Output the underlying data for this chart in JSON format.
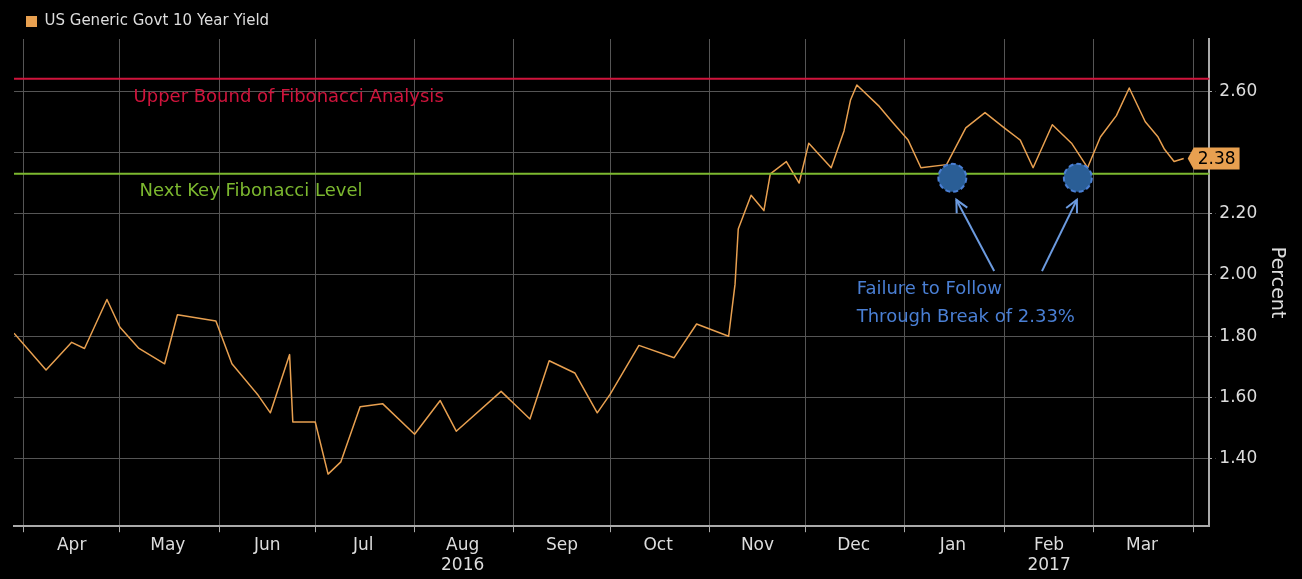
{
  "chart_data": {
    "type": "line",
    "ylabel": "Percent",
    "x": [
      "2016-03-29",
      "2016-04-08",
      "2016-04-16",
      "2016-04-20",
      "2016-04-27",
      "2016-05-01",
      "2016-05-07",
      "2016-05-15",
      "2016-05-19",
      "2016-05-31",
      "2016-06-05",
      "2016-06-13",
      "2016-06-17",
      "2016-06-23",
      "2016-06-24",
      "2016-07-01",
      "2016-07-05",
      "2016-07-09",
      "2016-07-15",
      "2016-07-22",
      "2016-08-01",
      "2016-08-09",
      "2016-08-14",
      "2016-08-28",
      "2016-09-06",
      "2016-09-12",
      "2016-09-20",
      "2016-09-27",
      "2016-10-01",
      "2016-10-10",
      "2016-10-21",
      "2016-10-28",
      "2016-11-07",
      "2016-11-09",
      "2016-11-10",
      "2016-11-14",
      "2016-11-18",
      "2016-11-20",
      "2016-11-25",
      "2016-11-29",
      "2016-12-02",
      "2016-12-09",
      "2016-12-13",
      "2016-12-15",
      "2016-12-17",
      "2016-12-24",
      "2016-12-28",
      "2017-01-02",
      "2017-01-06",
      "2017-01-14",
      "2017-01-20",
      "2017-01-26",
      "2017-02-01",
      "2017-02-06",
      "2017-02-10",
      "2017-02-16",
      "2017-02-22",
      "2017-02-27",
      "2017-03-03",
      "2017-03-08",
      "2017-03-12",
      "2017-03-17",
      "2017-03-21",
      "2017-03-23",
      "2017-03-26",
      "2017-03-29"
    ],
    "series": [
      {
        "name": "US Generic Govt 10 Year Yield",
        "color": "#e8a050",
        "values": [
          1.81,
          1.69,
          1.78,
          1.76,
          1.92,
          1.83,
          1.76,
          1.71,
          1.87,
          1.85,
          1.71,
          1.61,
          1.55,
          1.74,
          1.52,
          1.52,
          1.35,
          1.39,
          1.57,
          1.58,
          1.48,
          1.59,
          1.49,
          1.62,
          1.53,
          1.72,
          1.68,
          1.55,
          1.61,
          1.77,
          1.73,
          1.84,
          1.8,
          1.97,
          2.15,
          2.26,
          2.21,
          2.33,
          2.37,
          2.3,
          2.43,
          2.35,
          2.47,
          2.57,
          2.62,
          2.55,
          2.5,
          2.44,
          2.35,
          2.36,
          2.48,
          2.53,
          2.48,
          2.44,
          2.35,
          2.49,
          2.43,
          2.35,
          2.45,
          2.52,
          2.61,
          2.5,
          2.45,
          2.41,
          2.37,
          2.38
        ],
        "value_labels": [
          null,
          null,
          null,
          null,
          null,
          null,
          null,
          null,
          null,
          null,
          null,
          null,
          null,
          null,
          null,
          null,
          null,
          null,
          null,
          null,
          null,
          null,
          null,
          null,
          null,
          null,
          null,
          null,
          null,
          null,
          null,
          null,
          null,
          null,
          null,
          null,
          null,
          null,
          null,
          null,
          null,
          null,
          null,
          null,
          null,
          null,
          null,
          null,
          null,
          null,
          null,
          null,
          null,
          null,
          null,
          null,
          null,
          null,
          null,
          null,
          null,
          null,
          null,
          null,
          null,
          "2.38"
        ]
      }
    ],
    "xlim": [
      "2016-03-29",
      "2017-04-06"
    ],
    "xticks": [
      {
        "value": "2016-04-01",
        "label": null
      },
      {
        "value": "2016-04-16",
        "label": "Apr"
      },
      {
        "value": "2016-05-01",
        "label": null
      },
      {
        "value": "2016-05-16",
        "label": "May"
      },
      {
        "value": "2016-06-01",
        "label": null
      },
      {
        "value": "2016-06-16",
        "label": "Jun"
      },
      {
        "value": "2016-07-01",
        "label": null
      },
      {
        "value": "2016-07-16",
        "label": "Jul"
      },
      {
        "value": "2016-08-01",
        "label": null
      },
      {
        "value": "2016-08-16",
        "label": "Aug\n2016"
      },
      {
        "value": "2016-09-01",
        "label": null
      },
      {
        "value": "2016-09-16",
        "label": "Sep"
      },
      {
        "value": "2016-10-01",
        "label": null
      },
      {
        "value": "2016-10-16",
        "label": "Oct"
      },
      {
        "value": "2016-11-01",
        "label": null
      },
      {
        "value": "2016-11-16",
        "label": "Nov"
      },
      {
        "value": "2016-12-01",
        "label": null
      },
      {
        "value": "2016-12-16",
        "label": "Dec"
      },
      {
        "value": "2017-01-01",
        "label": null
      },
      {
        "value": "2017-01-16",
        "label": "Jan"
      },
      {
        "value": "2017-02-01",
        "label": null
      },
      {
        "value": "2017-02-15",
        "label": "Feb\n2017"
      },
      {
        "value": "2017-03-01",
        "label": null
      },
      {
        "value": "2017-03-16",
        "label": "Mar"
      },
      {
        "value": "2017-04-01",
        "label": null
      }
    ],
    "ylim": [
      1.18,
      2.77
    ],
    "yticks": [
      {
        "value": 1.4,
        "label": "1.40"
      },
      {
        "value": 1.6,
        "label": "1.60"
      },
      {
        "value": 1.8,
        "label": "1.80"
      },
      {
        "value": 2.0,
        "label": "2.00"
      },
      {
        "value": 2.2,
        "label": "2.20"
      },
      {
        "value": 2.4,
        "label": null
      },
      {
        "value": 2.6,
        "label": "2.60"
      }
    ],
    "ref_lines": [
      {
        "axis": "y",
        "value": 2.64,
        "label": "Upper Bound of Fibonacci Analysis",
        "color": "#d0143c"
      },
      {
        "axis": "y",
        "value": 2.33,
        "label": "Next Key Fibonacci Level",
        "color": "#7cb82f"
      }
    ],
    "annotations": [
      "Failure to Follow\nThrough Break of 2.33%"
    ],
    "grid": true,
    "legend": "top left",
    "marker": "none",
    "line_style": "solid"
  }
}
